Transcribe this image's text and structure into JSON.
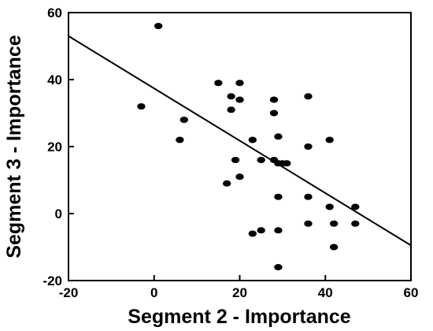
{
  "chart_data": {
    "type": "scatter",
    "xlabel": "Segment 2 - Importance",
    "ylabel": "Segment 3 - Importance",
    "xlim": [
      -20,
      60
    ],
    "ylim": [
      -20,
      60
    ],
    "xticks": [
      -20,
      0,
      20,
      40,
      60
    ],
    "yticks": [
      -20,
      0,
      20,
      40,
      60
    ],
    "x_tick_labels": [
      "-20",
      "0",
      "20",
      "40",
      "60"
    ],
    "y_tick_labels": [
      "-20",
      "0",
      "20",
      "40",
      "60"
    ],
    "grid": false,
    "legend": "none",
    "points": [
      [
        1,
        56
      ],
      [
        -3,
        32
      ],
      [
        6,
        22
      ],
      [
        7,
        28
      ],
      [
        15,
        39
      ],
      [
        18,
        35
      ],
      [
        18,
        31
      ],
      [
        20,
        39
      ],
      [
        20,
        34
      ],
      [
        17,
        9
      ],
      [
        19,
        16
      ],
      [
        20,
        11
      ],
      [
        23,
        22
      ],
      [
        25,
        16
      ],
      [
        28,
        34
      ],
      [
        28,
        30
      ],
      [
        28,
        16
      ],
      [
        29,
        23
      ],
      [
        29,
        15
      ],
      [
        30,
        15
      ],
      [
        31,
        15
      ],
      [
        29,
        5
      ],
      [
        23,
        -6
      ],
      [
        25,
        -5
      ],
      [
        29,
        -5
      ],
      [
        29,
        -16
      ],
      [
        36,
        35
      ],
      [
        36,
        20
      ],
      [
        36,
        5
      ],
      [
        36,
        -3
      ],
      [
        41,
        22
      ],
      [
        41,
        2
      ],
      [
        42,
        -3
      ],
      [
        42,
        -10
      ],
      [
        47,
        2
      ],
      [
        47,
        -3
      ]
    ],
    "trendline": {
      "x": [
        -20,
        60
      ],
      "y": [
        53,
        -9.5
      ]
    },
    "colors": {
      "points": "#000000",
      "line": "#000000",
      "frame": "#000000"
    }
  }
}
